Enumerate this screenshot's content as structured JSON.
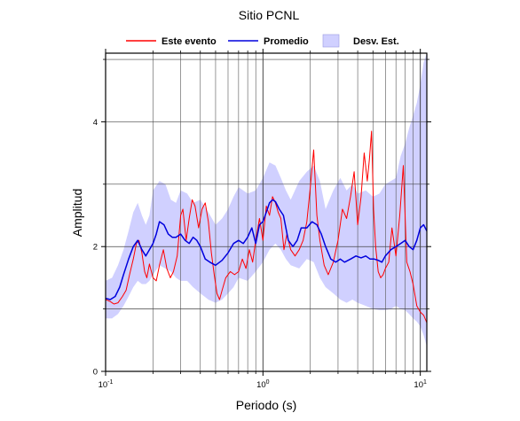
{
  "chart_data": {
    "type": "line",
    "title": "Sitio PCNL",
    "xlabel": "Periodo (s)",
    "ylabel": "Amplitud",
    "x_scale": "log",
    "xlim": [
      0.1,
      11.0
    ],
    "ylim": [
      0,
      5.1
    ],
    "yticks": [
      0,
      2,
      4
    ],
    "yticks_minor": [
      1,
      3,
      5
    ],
    "xticks": [
      {
        "value": 0.1,
        "base": "10",
        "exp": "-1"
      },
      {
        "value": 1,
        "base": "10",
        "exp": "0"
      },
      {
        "value": 10,
        "base": "10",
        "exp": "1"
      }
    ],
    "grid": true,
    "legend_position": "top",
    "legend": [
      {
        "label": "Este evento",
        "kind": "line",
        "color": "#ff0000"
      },
      {
        "label": "Promedio",
        "kind": "line",
        "color": "#0000dd"
      },
      {
        "label": "Desv. Est.",
        "kind": "patch",
        "color": "#d0d0ff"
      }
    ],
    "series": [
      {
        "name": "Este evento",
        "color": "#ff0000",
        "x": [
          0.1,
          0.107,
          0.113,
          0.12,
          0.128,
          0.135,
          0.142,
          0.15,
          0.157,
          0.163,
          0.17,
          0.177,
          0.183,
          0.19,
          0.2,
          0.21,
          0.22,
          0.233,
          0.245,
          0.258,
          0.27,
          0.285,
          0.3,
          0.31,
          0.325,
          0.34,
          0.355,
          0.37,
          0.39,
          0.41,
          0.43,
          0.45,
          0.47,
          0.49,
          0.51,
          0.53,
          0.55,
          0.58,
          0.62,
          0.66,
          0.7,
          0.74,
          0.78,
          0.82,
          0.86,
          0.9,
          0.95,
          1.0,
          1.05,
          1.1,
          1.15,
          1.2,
          1.25,
          1.3,
          1.36,
          1.42,
          1.5,
          1.6,
          1.7,
          1.8,
          1.9,
          2.0,
          2.1,
          2.2,
          2.3,
          2.45,
          2.6,
          2.8,
          3.0,
          3.2,
          3.4,
          3.6,
          3.8,
          4.0,
          4.2,
          4.4,
          4.6,
          4.75,
          4.9,
          5.05,
          5.2,
          5.4,
          5.6,
          5.8,
          6.0,
          6.3,
          6.6,
          7.0,
          7.4,
          7.8,
          8.2,
          8.6,
          9.0,
          9.5,
          10.0,
          10.5,
          11.0
        ],
        "values": [
          1.15,
          1.12,
          1.08,
          1.1,
          1.2,
          1.3,
          1.55,
          1.8,
          2.05,
          2.1,
          1.9,
          1.6,
          1.5,
          1.72,
          1.5,
          1.45,
          1.7,
          1.95,
          1.65,
          1.5,
          1.6,
          1.85,
          2.5,
          2.6,
          2.1,
          2.45,
          2.75,
          2.65,
          2.3,
          2.6,
          2.7,
          2.4,
          1.9,
          1.55,
          1.25,
          1.15,
          1.3,
          1.5,
          1.6,
          1.55,
          1.6,
          1.8,
          1.65,
          1.95,
          1.75,
          2.1,
          2.45,
          2.1,
          2.65,
          2.5,
          2.8,
          2.7,
          2.55,
          2.45,
          1.95,
          2.2,
          1.95,
          1.85,
          1.95,
          2.1,
          2.4,
          2.95,
          3.55,
          2.5,
          2.1,
          1.7,
          1.55,
          1.75,
          2.1,
          2.6,
          2.45,
          2.8,
          3.2,
          2.35,
          2.8,
          3.5,
          3.05,
          3.4,
          3.85,
          2.6,
          2.0,
          1.6,
          1.5,
          1.55,
          1.65,
          1.75,
          2.3,
          1.85,
          2.5,
          3.3,
          1.75,
          1.6,
          1.4,
          1.05,
          0.95,
          0.9,
          0.78
        ]
      },
      {
        "name": "Promedio",
        "color": "#0000dd",
        "x": [
          0.1,
          0.107,
          0.115,
          0.123,
          0.13,
          0.14,
          0.15,
          0.16,
          0.17,
          0.18,
          0.19,
          0.2,
          0.21,
          0.22,
          0.235,
          0.25,
          0.265,
          0.28,
          0.3,
          0.32,
          0.34,
          0.36,
          0.38,
          0.4,
          0.43,
          0.46,
          0.5,
          0.55,
          0.6,
          0.65,
          0.7,
          0.75,
          0.8,
          0.85,
          0.9,
          0.95,
          1.0,
          1.05,
          1.1,
          1.15,
          1.2,
          1.27,
          1.35,
          1.45,
          1.55,
          1.65,
          1.75,
          1.9,
          2.05,
          2.2,
          2.35,
          2.5,
          2.7,
          2.9,
          3.1,
          3.3,
          3.6,
          3.9,
          4.2,
          4.5,
          4.8,
          5.1,
          5.4,
          5.7,
          6.0,
          6.5,
          7.0,
          7.5,
          8.0,
          8.5,
          9.0,
          9.5,
          10.0,
          10.5,
          11.0
        ],
        "values": [
          1.17,
          1.15,
          1.2,
          1.35,
          1.55,
          1.8,
          2.0,
          2.1,
          1.95,
          1.85,
          1.95,
          2.05,
          2.2,
          2.4,
          2.35,
          2.2,
          2.15,
          2.15,
          2.2,
          2.1,
          2.05,
          2.15,
          2.1,
          2.0,
          1.8,
          1.75,
          1.7,
          1.78,
          1.9,
          2.05,
          2.1,
          2.05,
          2.15,
          2.3,
          2.05,
          2.35,
          2.4,
          2.55,
          2.7,
          2.75,
          2.72,
          2.6,
          2.5,
          2.1,
          2.0,
          2.1,
          2.3,
          2.3,
          2.4,
          2.35,
          2.2,
          2.0,
          1.8,
          1.75,
          1.8,
          1.75,
          1.8,
          1.85,
          1.82,
          1.85,
          1.8,
          1.8,
          1.78,
          1.75,
          1.85,
          1.95,
          2.0,
          2.05,
          2.1,
          2.0,
          1.95,
          2.1,
          2.3,
          2.35,
          2.25
        ]
      },
      {
        "name": "Desv. Est.",
        "color": "#d0d0ff",
        "x": [
          0.1,
          0.11,
          0.12,
          0.13,
          0.14,
          0.15,
          0.16,
          0.17,
          0.18,
          0.19,
          0.2,
          0.22,
          0.24,
          0.26,
          0.28,
          0.3,
          0.33,
          0.36,
          0.4,
          0.45,
          0.5,
          0.55,
          0.6,
          0.65,
          0.7,
          0.8,
          0.9,
          1.0,
          1.1,
          1.2,
          1.3,
          1.4,
          1.5,
          1.7,
          1.9,
          2.1,
          2.3,
          2.5,
          2.8,
          3.1,
          3.4,
          3.7,
          4.0,
          4.5,
          5.0,
          5.5,
          6.0,
          6.5,
          7.0,
          7.5,
          8.0,
          8.5,
          9.0,
          9.5,
          10.0,
          10.5,
          11.0
        ],
        "upper": [
          1.45,
          1.5,
          1.7,
          1.95,
          2.25,
          2.55,
          2.7,
          2.5,
          2.35,
          2.5,
          2.9,
          3.05,
          3.0,
          2.75,
          2.7,
          2.9,
          2.85,
          2.7,
          2.75,
          2.55,
          2.35,
          2.45,
          2.6,
          2.8,
          2.95,
          2.85,
          2.9,
          3.1,
          3.35,
          3.3,
          3.1,
          2.9,
          2.75,
          3.05,
          3.2,
          3.3,
          3.05,
          2.6,
          2.9,
          3.1,
          2.9,
          3.0,
          2.85,
          2.9,
          2.8,
          2.85,
          3.0,
          3.05,
          3.1,
          3.45,
          3.65,
          3.9,
          4.1,
          4.3,
          4.6,
          4.95,
          5.1
        ],
        "lower": [
          0.85,
          0.85,
          0.92,
          1.05,
          1.2,
          1.35,
          1.45,
          1.4,
          1.4,
          1.45,
          1.55,
          1.7,
          1.65,
          1.6,
          1.5,
          1.45,
          1.45,
          1.35,
          1.25,
          1.15,
          1.1,
          1.15,
          1.25,
          1.35,
          1.5,
          1.45,
          1.6,
          1.75,
          1.95,
          2.05,
          1.95,
          1.8,
          1.7,
          1.65,
          1.8,
          1.75,
          1.5,
          1.35,
          1.25,
          1.15,
          1.1,
          1.15,
          1.1,
          1.05,
          1.0,
          0.98,
          0.98,
          1.0,
          1.05,
          1.0,
          0.98,
          0.92,
          0.85,
          0.8,
          0.72,
          0.58,
          0.4
        ]
      }
    ]
  }
}
